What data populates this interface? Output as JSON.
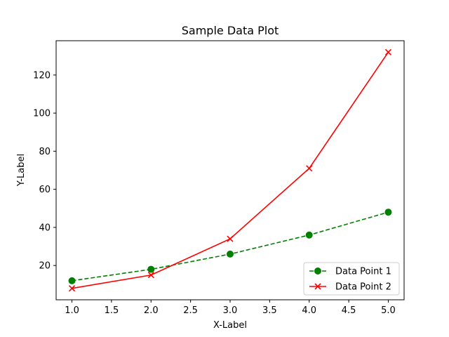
{
  "chart_data": {
    "type": "line",
    "title": "Sample Data Plot",
    "xlabel": "X-Label",
    "ylabel": "Y-Label",
    "xlim": [
      0.8,
      5.2
    ],
    "ylim": [
      2,
      138
    ],
    "x_ticks": [
      1.0,
      1.5,
      2.0,
      2.5,
      3.0,
      3.5,
      4.0,
      4.5,
      5.0
    ],
    "x_tick_labels": [
      "1.0",
      "1.5",
      "2.0",
      "2.5",
      "3.0",
      "3.5",
      "4.0",
      "4.5",
      "5.0"
    ],
    "y_ticks": [
      20,
      40,
      60,
      80,
      100,
      120
    ],
    "y_tick_labels": [
      "20",
      "40",
      "60",
      "80",
      "100",
      "120"
    ],
    "grid": false,
    "legend_position": "lower-right",
    "x": [
      1,
      2,
      3,
      4,
      5
    ],
    "series": [
      {
        "name": "Data Point 1",
        "values": [
          12,
          18,
          26,
          36,
          48
        ],
        "color": "#008000",
        "line_style": "dashed",
        "marker": "circle"
      },
      {
        "name": "Data Point 2",
        "values": [
          8,
          15,
          34,
          71,
          132
        ],
        "color": "#ff0000",
        "line_style": "solid",
        "marker": "x"
      }
    ]
  }
}
